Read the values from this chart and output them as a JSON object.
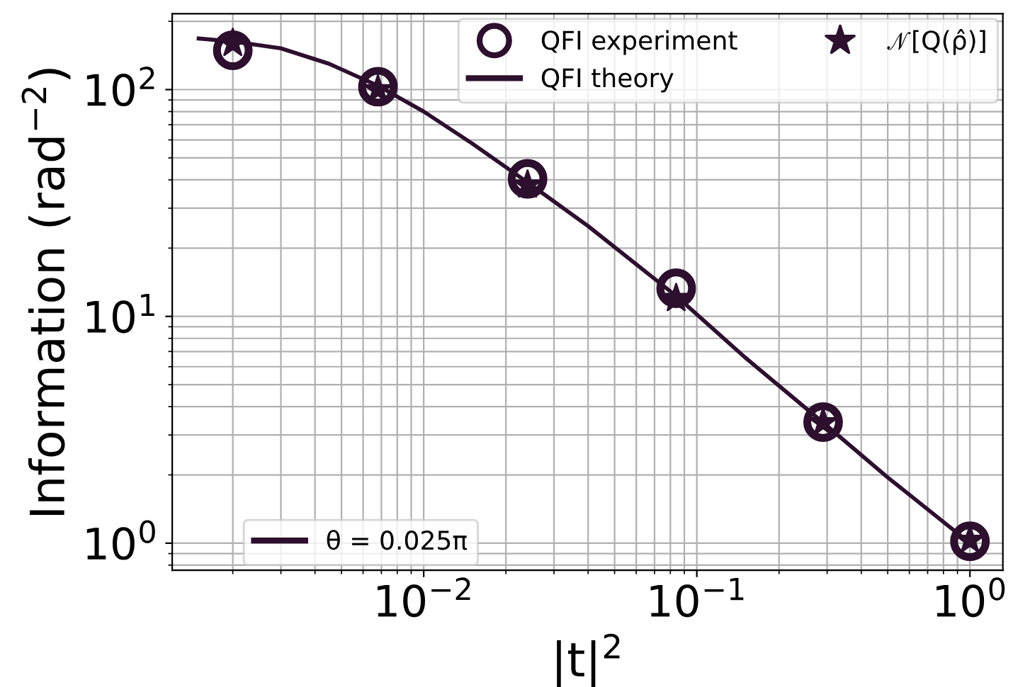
{
  "chart_data": {
    "type": "scatter",
    "xlabel": "|t|$^{2}$",
    "ylabel": "Information (rad$^{−2}$)",
    "legend_title": "θ = 0.025π",
    "log": "xy",
    "grid": true,
    "legend": "top right",
    "xlim": [
      0.0012,
      1.32
    ],
    "ylim": [
      0.76,
      216
    ],
    "xticks": [
      {
        "value": 0.01,
        "label": "10$^{−2}$"
      },
      {
        "value": 0.1,
        "label": "10$^{−1}$"
      },
      {
        "value": 1,
        "label": "10$^{0}$"
      }
    ],
    "yticks": [
      {
        "value": 1,
        "label": "10$^{0}$"
      },
      {
        "value": 10,
        "label": "10$^{1}$"
      },
      {
        "value": 100,
        "label": "10$^{2}$"
      }
    ],
    "series": [
      {
        "name": "QFI experiment",
        "type": "scatter",
        "marker": "circle",
        "color": "#2d0f2e",
        "x": [
          0.002,
          0.0068,
          0.024,
          0.084,
          0.29,
          1.0
        ],
        "values": [
          149,
          103,
          40.4,
          13.3,
          3.42,
          1.02
        ]
      },
      {
        "name": "QFI theory",
        "type": "line",
        "marker": "none",
        "line_style": "solid",
        "color": "#2d0f2e",
        "x": [
          0.0015,
          0.002,
          0.003,
          0.0045,
          0.0068,
          0.01,
          0.015,
          0.024,
          0.04,
          0.084,
          0.15,
          0.29,
          0.5,
          1.0
        ],
        "values": [
          168,
          163,
          152,
          130,
          104,
          80,
          58,
          39,
          25,
          12.3,
          6.6,
          3.4,
          1.95,
          1.0
        ]
      },
      {
        "name": "𝒩[Q(ρ̂)]",
        "type": "scatter",
        "marker": "star",
        "color": "#2d0f2e",
        "x": [
          0.002,
          0.0068,
          0.024,
          0.084,
          0.29,
          1.0
        ],
        "values": [
          160,
          100,
          38,
          12,
          3.4,
          1.03
        ]
      }
    ]
  }
}
